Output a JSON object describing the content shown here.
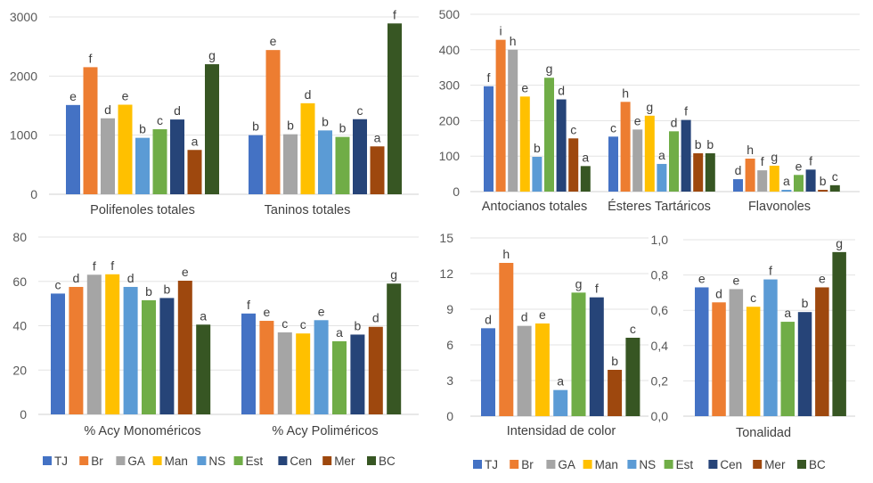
{
  "legend": [
    {
      "label": "TJ",
      "color": "#4472C4"
    },
    {
      "label": "Br",
      "color": "#ED7D31"
    },
    {
      "label": "GA",
      "color": "#A5A5A5"
    },
    {
      "label": "Man",
      "color": "#FFC000"
    },
    {
      "label": "NS",
      "color": "#5B9BD5"
    },
    {
      "label": "Est",
      "color": "#70AD47"
    },
    {
      "label": "Cen",
      "color": "#264478"
    },
    {
      "label": "Mer",
      "color": "#9E480E"
    },
    {
      "label": "BC",
      "color": "#375623"
    }
  ],
  "chart_data": [
    {
      "type": "bar",
      "ylim": [
        0,
        3000
      ],
      "yticks": [
        "0",
        "1000",
        "2000",
        "3000"
      ],
      "tickValues": [
        0,
        1000,
        2000,
        3000
      ],
      "series_names": [
        "TJ",
        "Br",
        "GA",
        "Man",
        "NS",
        "Est",
        "Cen",
        "Mer",
        "BC"
      ],
      "groups": [
        {
          "category": "Polifenoles totales",
          "values": [
            1510,
            2150,
            1285,
            1515,
            955,
            1100,
            1265,
            750,
            2200
          ],
          "letters": [
            "e",
            "f",
            "d",
            "e",
            "b",
            "c",
            "d",
            "a",
            "g"
          ]
        },
        {
          "category": "Taninos totales",
          "values": [
            1000,
            2440,
            1015,
            1540,
            1080,
            970,
            1270,
            810,
            2890
          ],
          "letters": [
            "b",
            "e",
            "b",
            "d",
            "b",
            "b",
            "c",
            "a",
            "f"
          ]
        }
      ]
    },
    {
      "type": "bar",
      "ylim": [
        0,
        500
      ],
      "yticks": [
        "0",
        "100",
        "200",
        "300",
        "400",
        "500"
      ],
      "tickValues": [
        0,
        100,
        200,
        300,
        400,
        500
      ],
      "series_names": [
        "TJ",
        "Br",
        "GA",
        "Man",
        "NS",
        "Est",
        "Cen",
        "Mer",
        "BC"
      ],
      "groups": [
        {
          "category": "Antocianos totales",
          "values": [
            297,
            428,
            400,
            268,
            98,
            321,
            260,
            150,
            72
          ],
          "letters": [
            "f",
            "i",
            "h",
            "e",
            "b",
            "g",
            "d",
            "c",
            "a"
          ]
        },
        {
          "category": "Ésteres Tartáricos",
          "values": [
            155,
            253,
            175,
            214,
            78,
            170,
            202,
            108,
            108
          ],
          "letters": [
            "c",
            "h",
            "e",
            "g",
            "a",
            "d",
            "f",
            "b",
            "b"
          ]
        },
        {
          "category": "Flavonoles",
          "values": [
            35,
            93,
            60,
            73,
            5,
            47,
            62,
            5,
            18
          ],
          "letters": [
            "d",
            "h",
            "f",
            "g",
            "a",
            "e",
            "f",
            "b",
            "c"
          ]
        }
      ]
    },
    {
      "type": "bar",
      "ylim": [
        0,
        80
      ],
      "yticks": [
        "0",
        "20",
        "40",
        "60",
        "80"
      ],
      "tickValues": [
        0,
        20,
        40,
        60,
        80
      ],
      "series_names": [
        "TJ",
        "Br",
        "GA",
        "Man",
        "NS",
        "Est",
        "Cen",
        "Mer",
        "BC"
      ],
      "groups": [
        {
          "category": "% Acy Monoméricos",
          "values": [
            54.5,
            57.5,
            63.0,
            63.2,
            57.5,
            51.5,
            52.5,
            60.3,
            40.5
          ],
          "letters": [
            "c",
            "d",
            "f",
            "f",
            "d",
            "b",
            "b",
            "e",
            "a"
          ]
        },
        {
          "category": "% Acy Poliméricos",
          "values": [
            45.5,
            42.2,
            37.0,
            36.5,
            42.5,
            33.0,
            36.0,
            39.5,
            59.0
          ],
          "letters": [
            "f",
            "e",
            "c",
            "c",
            "e",
            "a",
            "b",
            "d",
            "g"
          ]
        }
      ]
    },
    {
      "type": "bar",
      "ylim": [
        0,
        15
      ],
      "yticks": [
        "0",
        "3",
        "6",
        "9",
        "12",
        "15"
      ],
      "tickValues": [
        0,
        3,
        6,
        9,
        12,
        15
      ],
      "series_names": [
        "TJ",
        "Br",
        "GA",
        "Man",
        "NS",
        "Est",
        "Cen",
        "Mer",
        "BC"
      ],
      "groups": [
        {
          "category": "Intensidad de color",
          "values": [
            7.4,
            12.9,
            7.6,
            7.8,
            2.2,
            10.4,
            10.0,
            3.9,
            6.6
          ],
          "letters": [
            "d",
            "h",
            "d",
            "e",
            "a",
            "g",
            "f",
            "b",
            "c"
          ]
        }
      ]
    },
    {
      "type": "bar",
      "ylim": [
        0,
        1.0
      ],
      "yticks": [
        "0,0",
        "0,2",
        "0,4",
        "0,6",
        "0,8",
        "1,0"
      ],
      "tickValues": [
        0,
        0.2,
        0.4,
        0.6,
        0.8,
        1.0
      ],
      "series_names": [
        "TJ",
        "Br",
        "GA",
        "Man",
        "NS",
        "Est",
        "Cen",
        "Mer",
        "BC"
      ],
      "groups": [
        {
          "category": "Tonalidad",
          "values": [
            0.73,
            0.645,
            0.72,
            0.62,
            0.775,
            0.535,
            0.59,
            0.73,
            0.93
          ],
          "letters": [
            "e",
            "d",
            "e",
            "c",
            "f",
            "a",
            "b",
            "e",
            "g"
          ]
        }
      ]
    }
  ]
}
